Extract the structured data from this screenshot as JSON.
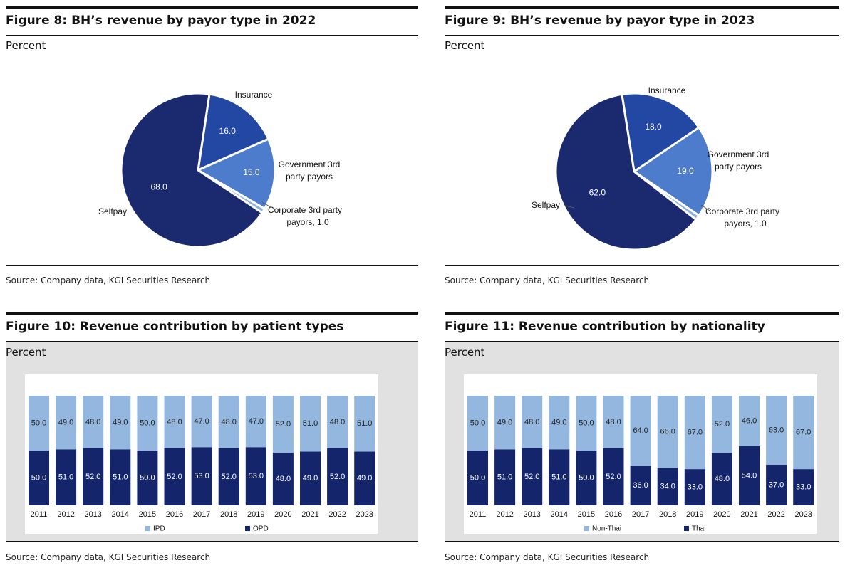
{
  "source_text": "Source: Company data, KGI Securities Research",
  "colors": {
    "pie_dark": "#1b2a6e",
    "pie_mid": "#2348a3",
    "pie_light": "#4d7ccc",
    "pie_pale": "#8fb1df",
    "bar_dark": "#14256b",
    "bar_light": "#93b7de"
  },
  "chart_data": [
    {
      "type": "pie",
      "title": "Figure 8: BH’s revenue by payor type in 2022",
      "unit": "Percent",
      "slices": [
        {
          "label": "Insurance",
          "value": 16.0,
          "value_label": "16.0"
        },
        {
          "label": "Government 3rd party payors",
          "value": 15.0,
          "value_label": "15.0"
        },
        {
          "label": "Corporate 3rd party payors, 1.0",
          "value": 1.0,
          "value_label": ""
        },
        {
          "label": "Selfpay",
          "value": 68.0,
          "value_label": "68.0"
        }
      ]
    },
    {
      "type": "pie",
      "title": "Figure 9: BH’s revenue by payor type in 2023",
      "unit": "Percent",
      "slices": [
        {
          "label": "Insurance",
          "value": 18.0,
          "value_label": "18.0"
        },
        {
          "label": "Government 3rd party payors",
          "value": 19.0,
          "value_label": "19.0"
        },
        {
          "label": "Corporate 3rd party payors, 1.0",
          "value": 1.0,
          "value_label": ""
        },
        {
          "label": "Selfpay",
          "value": 62.0,
          "value_label": "62.0"
        }
      ]
    },
    {
      "type": "bar",
      "stacked": true,
      "title": "Figure 10: Revenue contribution by patient types",
      "unit": "Percent",
      "categories": [
        "2011",
        "2012",
        "2013",
        "2014",
        "2015",
        "2016",
        "2017",
        "2018",
        "2019",
        "2020",
        "2021",
        "2022",
        "2023"
      ],
      "series": [
        {
          "name": "OPD",
          "values": [
            50.0,
            51.0,
            52.0,
            51.0,
            50.0,
            52.0,
            53.0,
            52.0,
            53.0,
            48.0,
            49.0,
            52.0,
            49.0
          ]
        },
        {
          "name": "IPD",
          "values": [
            50.0,
            49.0,
            48.0,
            49.0,
            50.0,
            48.0,
            47.0,
            48.0,
            47.0,
            52.0,
            51.0,
            48.0,
            51.0
          ]
        }
      ],
      "legend": [
        "IPD",
        "OPD"
      ],
      "ylim": [
        0,
        100
      ]
    },
    {
      "type": "bar",
      "stacked": true,
      "title": "Figure 11: Revenue contribution by nationality",
      "unit": "Percent",
      "categories": [
        "2011",
        "2012",
        "2013",
        "2014",
        "2015",
        "2016",
        "2017",
        "2018",
        "2019",
        "2020",
        "2021",
        "2022",
        "2023"
      ],
      "series": [
        {
          "name": "Thai",
          "values": [
            50.0,
            51.0,
            52.0,
            51.0,
            50.0,
            52.0,
            36.0,
            34.0,
            33.0,
            48.0,
            54.0,
            37.0,
            33.0
          ]
        },
        {
          "name": "Non-Thai",
          "values": [
            50.0,
            49.0,
            48.0,
            49.0,
            50.0,
            48.0,
            64.0,
            66.0,
            67.0,
            52.0,
            46.0,
            63.0,
            67.0
          ]
        }
      ],
      "legend": [
        "Non-Thai",
        "Thai"
      ],
      "ylim": [
        0,
        100
      ]
    }
  ]
}
